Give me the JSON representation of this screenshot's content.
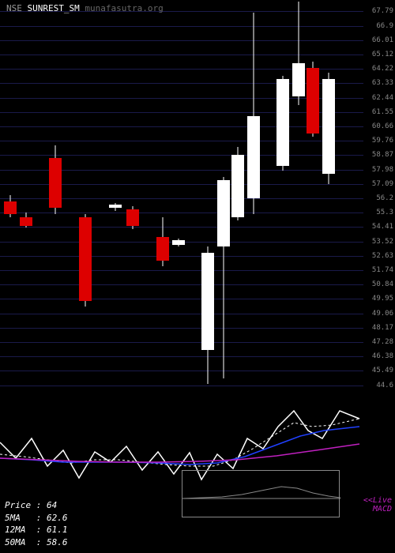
{
  "title": {
    "exchange": "NSE",
    "symbol": "SUNREST_SM",
    "source": "munafasutra.org"
  },
  "chart": {
    "type": "candlestick",
    "background_color": "#000000",
    "grid_color": "#1a1a4a",
    "area_width": 460,
    "area_height": 510,
    "ylim": [
      43.5,
      68.5
    ],
    "y_labels": [
      67.79,
      66.9,
      66.01,
      65.12,
      64.22,
      63.33,
      62.44,
      61.55,
      60.66,
      59.76,
      58.87,
      57.98,
      57.09,
      56.2,
      55.3,
      54.41,
      53.52,
      52.63,
      51.74,
      50.84,
      49.95,
      49.06,
      48.17,
      47.28,
      46.38,
      45.49,
      44.6
    ],
    "y_label_color": "#888888",
    "y_label_fontsize": 9,
    "candle_width": 16,
    "up_color": "#ffffff",
    "down_color": "#dd0000",
    "wick_color": "#ffffff",
    "candles": [
      {
        "x": 5,
        "o": 56.0,
        "h": 56.4,
        "l": 55.0,
        "c": 55.2
      },
      {
        "x": 25,
        "o": 55.0,
        "h": 55.3,
        "l": 54.4,
        "c": 54.5
      },
      {
        "x": 62,
        "o": 58.7,
        "h": 59.5,
        "l": 55.2,
        "c": 55.6
      },
      {
        "x": 100,
        "o": 55.0,
        "h": 55.2,
        "l": 49.5,
        "c": 49.8
      },
      {
        "x": 138,
        "o": 55.6,
        "h": 55.9,
        "l": 55.4,
        "c": 55.8
      },
      {
        "x": 160,
        "o": 55.5,
        "h": 55.7,
        "l": 54.3,
        "c": 54.5
      },
      {
        "x": 198,
        "o": 53.8,
        "h": 55.0,
        "l": 52.0,
        "c": 52.3
      },
      {
        "x": 218,
        "o": 53.3,
        "h": 53.7,
        "l": 53.2,
        "c": 53.6
      },
      {
        "x": 255,
        "o": 46.8,
        "h": 53.2,
        "l": 44.7,
        "c": 52.8
      },
      {
        "x": 275,
        "o": 53.2,
        "h": 57.5,
        "l": 45.0,
        "c": 57.3
      },
      {
        "x": 293,
        "o": 55.0,
        "h": 59.4,
        "l": 54.8,
        "c": 58.9
      },
      {
        "x": 313,
        "o": 56.2,
        "h": 67.7,
        "l": 55.2,
        "c": 61.3
      },
      {
        "x": 350,
        "o": 58.2,
        "h": 63.8,
        "l": 57.9,
        "c": 63.6
      },
      {
        "x": 370,
        "o": 62.5,
        "h": 68.4,
        "l": 62.0,
        "c": 64.6
      },
      {
        "x": 388,
        "o": 64.3,
        "h": 64.7,
        "l": 60.0,
        "c": 60.2
      },
      {
        "x": 408,
        "o": 57.7,
        "h": 64.0,
        "l": 57.1,
        "c": 63.6
      }
    ]
  },
  "indicators": {
    "area_top": 510,
    "area_height": 120,
    "lines": [
      {
        "name": "fast",
        "color": "#ffffff",
        "width": 1.5,
        "points": [
          [
            0,
            560
          ],
          [
            20,
            580
          ],
          [
            40,
            555
          ],
          [
            60,
            590
          ],
          [
            80,
            570
          ],
          [
            100,
            605
          ],
          [
            120,
            572
          ],
          [
            140,
            585
          ],
          [
            160,
            565
          ],
          [
            180,
            595
          ],
          [
            200,
            572
          ],
          [
            220,
            600
          ],
          [
            240,
            573
          ],
          [
            255,
            607
          ],
          [
            275,
            575
          ],
          [
            295,
            593
          ],
          [
            313,
            555
          ],
          [
            333,
            568
          ],
          [
            352,
            540
          ],
          [
            372,
            520
          ],
          [
            390,
            545
          ],
          [
            408,
            555
          ],
          [
            430,
            520
          ],
          [
            455,
            530
          ]
        ]
      },
      {
        "name": "signal",
        "color": "#ffffff",
        "width": 1,
        "dash": "3,3",
        "points": [
          [
            0,
            575
          ],
          [
            30,
            578
          ],
          [
            60,
            582
          ],
          [
            90,
            586
          ],
          [
            120,
            582
          ],
          [
            150,
            582
          ],
          [
            180,
            585
          ],
          [
            210,
            588
          ],
          [
            240,
            590
          ],
          [
            270,
            590
          ],
          [
            295,
            582
          ],
          [
            320,
            568
          ],
          [
            345,
            552
          ],
          [
            372,
            535
          ],
          [
            395,
            540
          ],
          [
            420,
            538
          ],
          [
            455,
            530
          ]
        ]
      },
      {
        "name": "ma-blue",
        "color": "#2040ff",
        "width": 1.5,
        "points": [
          [
            0,
            580
          ],
          [
            40,
            582
          ],
          [
            80,
            585
          ],
          [
            120,
            585
          ],
          [
            160,
            585
          ],
          [
            200,
            586
          ],
          [
            240,
            588
          ],
          [
            275,
            586
          ],
          [
            310,
            578
          ],
          [
            345,
            565
          ],
          [
            380,
            552
          ],
          [
            410,
            545
          ],
          [
            455,
            540
          ]
        ]
      },
      {
        "name": "ma-magenta",
        "color": "#c020c0",
        "width": 1.5,
        "points": [
          [
            0,
            580
          ],
          [
            50,
            582
          ],
          [
            100,
            584
          ],
          [
            150,
            585
          ],
          [
            200,
            585
          ],
          [
            250,
            584
          ],
          [
            300,
            582
          ],
          [
            350,
            577
          ],
          [
            400,
            570
          ],
          [
            455,
            562
          ]
        ]
      }
    ]
  },
  "macd_inset": {
    "line_color": "#888888",
    "label_arrow": "<<Live",
    "label_text": "MACD",
    "points": [
      [
        0,
        35
      ],
      [
        25,
        34
      ],
      [
        50,
        33
      ],
      [
        75,
        30
      ],
      [
        100,
        25
      ],
      [
        125,
        20
      ],
      [
        145,
        22
      ],
      [
        165,
        28
      ],
      [
        185,
        32
      ],
      [
        200,
        34
      ]
    ],
    "zero_y": 35
  },
  "info": {
    "rows": [
      [
        "Price",
        "64"
      ],
      [
        "5MA",
        "62.6"
      ],
      [
        "12MA",
        "61.1"
      ],
      [
        "50MA",
        "58.6"
      ]
    ]
  }
}
